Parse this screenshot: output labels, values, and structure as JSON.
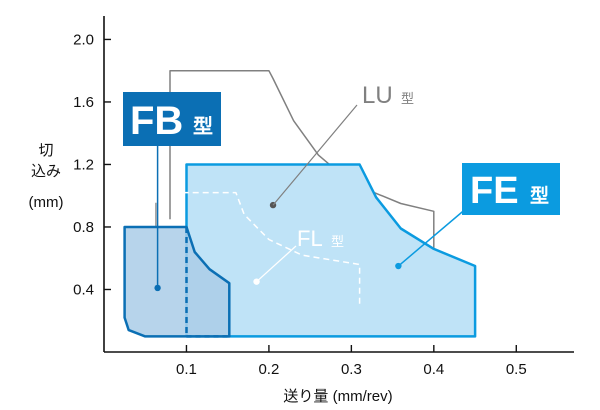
{
  "chart_data": {
    "type": "area",
    "title": "",
    "xlabel": "送り量 (mm/rev)",
    "ylabel_lines": [
      "切",
      "込み",
      "(mm)"
    ],
    "xlim": [
      0,
      0.57
    ],
    "ylim": [
      0,
      2.15
    ],
    "x_ticks": [
      0.1,
      0.2,
      0.3,
      0.4,
      0.5
    ],
    "x_tick_labels": [
      "0.1",
      "0.2",
      "0.3",
      "0.4",
      "0.5"
    ],
    "y_ticks": [
      0.4,
      0.8,
      1.2,
      1.6,
      2.0
    ],
    "y_tick_labels": [
      "0.4",
      "0.8",
      "1.2",
      "1.6",
      "2.0"
    ],
    "grid": false,
    "series": [
      {
        "name": "LU型",
        "label_main": "LU",
        "label_suffix": "型",
        "color": "#808080",
        "style": "solid-outline",
        "callout_point": [
          0.205,
          0.94
        ],
        "points": [
          [
            0.08,
            0.85
          ],
          [
            0.08,
            1.8
          ],
          [
            0.2,
            1.8
          ],
          [
            0.205,
            1.75
          ],
          [
            0.23,
            1.48
          ],
          [
            0.26,
            1.26
          ],
          [
            0.3,
            1.08
          ],
          [
            0.36,
            0.95
          ],
          [
            0.4,
            0.9
          ],
          [
            0.4,
            0.4
          ]
        ]
      },
      {
        "name": "FE型",
        "label_main": "FE",
        "label_suffix": "型",
        "color": "#0b9be0",
        "fill": "#bfe3f7",
        "style": "filled",
        "callout_point": [
          0.357,
          0.55
        ],
        "points": [
          [
            0.1,
            1.2
          ],
          [
            0.31,
            1.2
          ],
          [
            0.33,
            0.99
          ],
          [
            0.36,
            0.79
          ],
          [
            0.4,
            0.66
          ],
          [
            0.45,
            0.55
          ],
          [
            0.45,
            0.1
          ],
          [
            0.1,
            0.1
          ]
        ]
      },
      {
        "name": "FL型",
        "label_main": "FL",
        "label_suffix": "型",
        "color": "#ffffff",
        "style": "dashed-outline",
        "callout_point": [
          0.185,
          0.45
        ],
        "points": [
          [
            0.05,
            0.3
          ],
          [
            0.05,
            0.96
          ],
          [
            0.09,
            0.96
          ],
          [
            0.09,
            1.02
          ],
          [
            0.16,
            1.02
          ],
          [
            0.17,
            0.88
          ],
          [
            0.2,
            0.72
          ],
          [
            0.24,
            0.62
          ],
          [
            0.31,
            0.56
          ],
          [
            0.31,
            0.3
          ]
        ]
      },
      {
        "name": "FB型",
        "label_main": "FB",
        "label_suffix": "型",
        "color": "#0b6fb4",
        "fill": "#aacde8",
        "style": "filled-dark",
        "callout_point": [
          0.065,
          0.41
        ],
        "points": [
          [
            0.025,
            0.8
          ],
          [
            0.1,
            0.8
          ],
          [
            0.11,
            0.64
          ],
          [
            0.128,
            0.53
          ],
          [
            0.152,
            0.44
          ],
          [
            0.152,
            0.1
          ],
          [
            0.05,
            0.1
          ],
          [
            0.03,
            0.14
          ],
          [
            0.025,
            0.22
          ]
        ]
      }
    ]
  }
}
